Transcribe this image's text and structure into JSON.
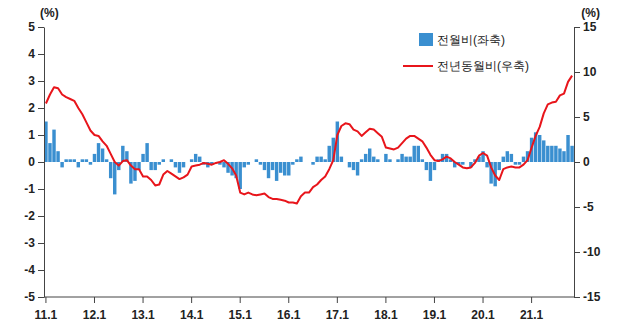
{
  "chart_data": {
    "type": "bar",
    "y_label": "(%)",
    "y2_label": "(%)",
    "legend": "upper right",
    "categories": [
      "11.1",
      null,
      null,
      null,
      null,
      null,
      null,
      null,
      null,
      null,
      null,
      null,
      "12.1",
      null,
      null,
      null,
      null,
      null,
      null,
      null,
      null,
      null,
      null,
      null,
      "13.1",
      null,
      null,
      null,
      null,
      null,
      null,
      null,
      null,
      null,
      null,
      null,
      "14.1",
      null,
      null,
      null,
      null,
      null,
      null,
      null,
      null,
      null,
      null,
      null,
      "15.1",
      null,
      null,
      null,
      null,
      null,
      null,
      null,
      null,
      null,
      null,
      null,
      "16.1",
      null,
      null,
      null,
      null,
      null,
      null,
      null,
      null,
      null,
      null,
      null,
      "17.1",
      null,
      null,
      null,
      null,
      null,
      null,
      null,
      null,
      null,
      null,
      null,
      "18.1",
      null,
      null,
      null,
      null,
      null,
      null,
      null,
      null,
      null,
      null,
      null,
      "19.1",
      null,
      null,
      null,
      null,
      null,
      null,
      null,
      null,
      null,
      null,
      null,
      "20.1",
      null,
      null,
      null,
      null,
      null,
      null,
      null,
      null,
      null,
      null,
      null,
      "21.1",
      null,
      null,
      null,
      null,
      null,
      null,
      null,
      null,
      null,
      null
    ],
    "series": [
      {
        "name": "전월비(좌축)",
        "type": "bar",
        "color": "#3a8fd0",
        "values": [
          1.5,
          0.7,
          1.2,
          0.4,
          -0.2,
          0.1,
          0.1,
          0.1,
          -0.2,
          0.1,
          0.1,
          -0.1,
          0.3,
          0.7,
          0.5,
          0.1,
          -0.6,
          -1.2,
          -0.3,
          0.6,
          0.4,
          -0.8,
          -0.7,
          -0.3,
          0.3,
          0.7,
          -0.3,
          -0.3,
          -0.1,
          0.1,
          0.0,
          0.1,
          -0.2,
          -0.4,
          -0.2,
          0.0,
          0.1,
          0.3,
          0.2,
          -0.1,
          -0.2,
          -0.1,
          0.0,
          -0.1,
          -0.2,
          -0.4,
          -0.5,
          -0.6,
          -1.0,
          -0.2,
          -0.1,
          0.0,
          0.1,
          -0.1,
          -0.3,
          -0.6,
          -0.3,
          -0.7,
          -0.4,
          -0.5,
          -0.5,
          -0.1,
          0.1,
          0.2,
          0.0,
          0.0,
          -0.1,
          0.2,
          0.2,
          0.1,
          0.6,
          0.9,
          1.5,
          0.2,
          0.0,
          -0.2,
          -0.3,
          -0.5,
          0.1,
          0.3,
          0.5,
          0.2,
          0.1,
          0.0,
          0.3,
          0.1,
          0.0,
          0.1,
          0.3,
          0.2,
          0.2,
          0.6,
          0.6,
          0.1,
          -0.3,
          -0.7,
          -0.3,
          0.1,
          0.3,
          0.3,
          0.1,
          -0.2,
          -0.1,
          -0.1,
          0.0,
          -0.2,
          0.1,
          0.2,
          0.4,
          -0.2,
          -0.8,
          -0.9,
          -0.3,
          0.2,
          0.4,
          0.3,
          -0.1,
          -0.1,
          0.2,
          0.4,
          0.9,
          1.1,
          1.0,
          0.8,
          0.6,
          0.6,
          0.6,
          0.5,
          0.4,
          1.0,
          0.6
        ]
      },
      {
        "name": "전년동월비(우축)",
        "type": "line",
        "axis": "y2",
        "color": "#e8151b",
        "values": [
          6.5,
          7.5,
          8.3,
          8.2,
          7.5,
          7.2,
          7.0,
          6.8,
          6.0,
          5.3,
          4.4,
          3.5,
          3.0,
          2.9,
          2.3,
          1.8,
          0.9,
          0.0,
          -0.4,
          0.1,
          0.2,
          -0.4,
          -0.8,
          -0.8,
          -1.6,
          -1.6,
          -2.0,
          -2.6,
          -2.5,
          -1.4,
          -1.0,
          -1.3,
          -1.6,
          -1.9,
          -1.7,
          -1.4,
          -0.5,
          -0.4,
          -0.3,
          -0.1,
          -0.2,
          -0.3,
          -0.1,
          0.0,
          0.2,
          -0.2,
          -0.7,
          -1.5,
          -3.4,
          -3.6,
          -3.4,
          -3.6,
          -3.7,
          -3.6,
          -3.5,
          -3.9,
          -4.1,
          -4.1,
          -4.2,
          -4.3,
          -4.5,
          -4.5,
          -4.6,
          -3.8,
          -3.4,
          -3.4,
          -2.8,
          -2.5,
          -2.0,
          -1.6,
          -0.8,
          0.2,
          3.0,
          4.0,
          4.3,
          4.2,
          3.6,
          3.4,
          2.9,
          3.3,
          3.7,
          3.6,
          3.2,
          2.8,
          1.6,
          1.5,
          1.4,
          1.6,
          2.1,
          2.6,
          2.9,
          2.9,
          2.6,
          2.3,
          1.6,
          0.8,
          0.2,
          0.1,
          0.3,
          0.6,
          0.4,
          0.0,
          -0.3,
          -0.6,
          -0.7,
          -0.6,
          -0.1,
          0.7,
          1.0,
          0.7,
          -0.6,
          -1.5,
          -2.0,
          -0.8,
          -0.6,
          -0.5,
          -0.6,
          -0.6,
          -0.3,
          0.2,
          1.6,
          2.9,
          3.9,
          5.4,
          6.4,
          6.6,
          6.7,
          7.4,
          7.6,
          8.9,
          9.6
        ]
      }
    ],
    "ylim": [
      -5,
      5
    ],
    "yticks": [
      -5,
      -4,
      -3,
      -2,
      -1,
      0,
      1,
      2,
      3,
      4,
      5
    ],
    "y2lim": [
      -15,
      15
    ],
    "y2ticks": [
      -15,
      -10,
      -5,
      0,
      5,
      10,
      15
    ]
  }
}
